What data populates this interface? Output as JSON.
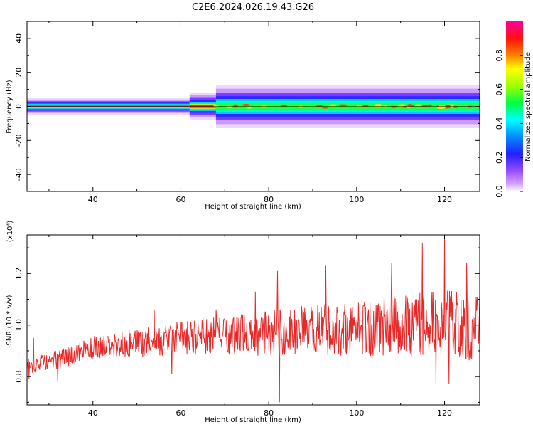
{
  "title": "C2E6.2024.026.19.43.G26",
  "chart_data": [
    {
      "type": "heatmap",
      "xlabel": "Height of straight line (km)",
      "ylabel": "Frequency (Hz)",
      "xlim": [
        25,
        128
      ],
      "ylim": [
        -50,
        50
      ],
      "xticks": [
        40,
        60,
        80,
        100,
        120
      ],
      "yticks": [
        -40,
        -20,
        0,
        20,
        40
      ],
      "colorbar": {
        "label": "Normalized spectral amplitude",
        "range": [
          0,
          1
        ],
        "ticks": [
          "0.0",
          "0.2",
          "0.4",
          "0.6",
          "0.8"
        ]
      },
      "signal_center_hz": 0,
      "segments": [
        {
          "x_start": 25,
          "x_end": 62,
          "amplitude": 0.9,
          "half_width_hz": 1.5
        },
        {
          "x_start": 62,
          "x_end": 68,
          "amplitude": 0.75,
          "half_width_hz": 2.5
        },
        {
          "x_start": 68,
          "x_end": 128,
          "amplitude": 0.5,
          "half_width_hz": 4
        }
      ]
    },
    {
      "type": "line",
      "xlabel": "Height of straight line (km)",
      "ylabel": "SNR (10 * v/v)",
      "yscale_note": "(x10⁴)",
      "xlim": [
        25,
        128
      ],
      "ylim": [
        0.69,
        1.35
      ],
      "xticks": [
        40,
        60,
        80,
        100,
        120
      ],
      "yticks": [
        0.8,
        1.0,
        1.2
      ],
      "series": [
        {
          "color": "#e8292a",
          "x_start": 25,
          "x_end": 128,
          "trend_x": [
            25,
            30,
            35,
            40,
            50,
            60,
            70,
            80,
            90,
            100,
            110,
            120,
            128
          ],
          "trend_y": [
            0.84,
            0.86,
            0.88,
            0.91,
            0.93,
            0.95,
            0.96,
            0.97,
            0.98,
            0.99,
            1.0,
            1.0,
            1.0
          ],
          "spikes": [
            {
              "x": 25.5,
              "y": 0.79
            },
            {
              "x": 26.5,
              "y": 0.95
            },
            {
              "x": 32,
              "y": 0.78
            },
            {
              "x": 54,
              "y": 1.06
            },
            {
              "x": 58,
              "y": 0.81
            },
            {
              "x": 68,
              "y": 1.06
            },
            {
              "x": 77,
              "y": 1.13
            },
            {
              "x": 82,
              "y": 1.21
            },
            {
              "x": 82.5,
              "y": 0.7
            },
            {
              "x": 93,
              "y": 1.23
            },
            {
              "x": 108,
              "y": 1.24
            },
            {
              "x": 115,
              "y": 1.32
            },
            {
              "x": 118,
              "y": 0.77
            },
            {
              "x": 120,
              "y": 1.34
            },
            {
              "x": 121,
              "y": 0.77
            },
            {
              "x": 125,
              "y": 1.24
            }
          ]
        }
      ]
    }
  ]
}
